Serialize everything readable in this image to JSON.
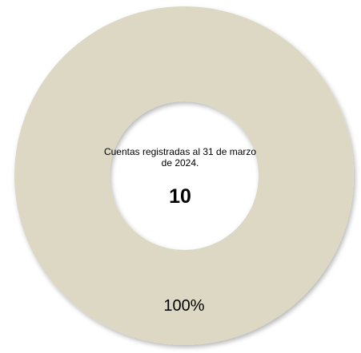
{
  "chart_data": {
    "type": "pie",
    "variant": "donut",
    "title": "",
    "categories": [
      "Cuentas registradas"
    ],
    "values": [
      10
    ],
    "percent_labels": [
      "100%"
    ],
    "colors": [
      "#dcd8c4"
    ],
    "center_caption": "Cuentas registradas al 31 de marzo de 2024.",
    "center_value": "10"
  }
}
